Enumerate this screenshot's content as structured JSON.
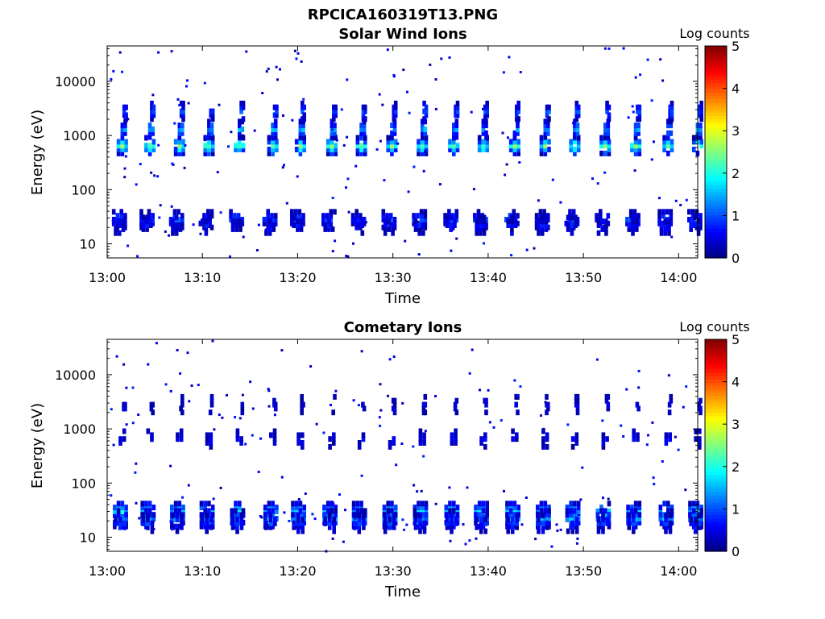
{
  "figure": {
    "title": "RPCICA160319T13.PNG"
  },
  "chart_data": [
    {
      "type": "heatmap",
      "title": "Solar Wind Ions",
      "xlabel": "Time",
      "ylabel": "Energy (eV)",
      "x_ticks": [
        "13:00",
        "13:10",
        "13:20",
        "13:30",
        "13:40",
        "13:50",
        "14:00"
      ],
      "y_ticks": [
        "10",
        "100",
        "1000",
        "10000"
      ],
      "x_range_min": [
        0,
        62
      ],
      "y_range_eV": [
        5.5,
        45000
      ],
      "y_scale": "log",
      "colorbar": {
        "label": "Log counts",
        "ticks": [
          "0",
          "1",
          "2",
          "3",
          "4",
          "5"
        ],
        "range": [
          0,
          5
        ],
        "colormap": "jet"
      },
      "sweep_start_min": [
        0.1,
        3.0,
        6.1,
        9.2,
        12.4,
        15.9,
        18.8,
        22.1,
        25.2,
        28.4,
        31.6,
        34.9,
        38.0,
        41.3,
        44.5,
        47.6,
        50.8,
        54.0,
        57.4,
        60.5
      ],
      "blobs": [
        {
          "energy_eV": 650,
          "t_offset_min": 1.5,
          "width_min": 1.2,
          "peak_log": 2.4
        },
        {
          "energy_eV": 1300,
          "t_offset_min": 1.6,
          "width_min": 0.6,
          "peak_log": 1.6
        },
        {
          "energy_eV": 2800,
          "t_offset_min": 1.7,
          "width_min": 0.4,
          "peak_log": 1.1
        },
        {
          "energy_eV": 28,
          "t_offset_min": 1.2,
          "width_min": 1.6,
          "peak_log": 1.0
        },
        {
          "energy_eV": 22,
          "t_offset_min": 1.2,
          "width_min": 1.2,
          "peak_log": 0.6
        }
      ],
      "grid": false
    },
    {
      "type": "heatmap",
      "title": "Cometary Ions",
      "xlabel": "Time",
      "ylabel": "Energy (eV)",
      "x_ticks": [
        "13:00",
        "13:10",
        "13:20",
        "13:30",
        "13:40",
        "13:50",
        "14:00"
      ],
      "y_ticks": [
        "10",
        "100",
        "1000",
        "10000"
      ],
      "x_range_min": [
        0,
        62
      ],
      "y_range_eV": [
        5.5,
        45000
      ],
      "y_scale": "log",
      "colorbar": {
        "label": "Log counts",
        "ticks": [
          "0",
          "1",
          "2",
          "3",
          "4",
          "5"
        ],
        "range": [
          0,
          5
        ],
        "colormap": "jet"
      },
      "sweep_start_min": [
        0.1,
        3.0,
        6.1,
        9.2,
        12.4,
        15.9,
        18.8,
        22.1,
        25.2,
        28.4,
        31.6,
        34.9,
        38.0,
        41.3,
        44.5,
        47.6,
        50.8,
        54.0,
        57.4,
        60.5
      ],
      "blobs": [
        {
          "energy_eV": 30,
          "t_offset_min": 1.3,
          "width_min": 1.6,
          "peak_log": 2.2
        },
        {
          "energy_eV": 22,
          "t_offset_min": 1.3,
          "width_min": 1.6,
          "peak_log": 1.6
        },
        {
          "energy_eV": 18,
          "t_offset_min": 1.3,
          "width_min": 1.4,
          "peak_log": 0.8
        },
        {
          "energy_eV": 650,
          "t_offset_min": 1.5,
          "width_min": 0.8,
          "peak_log": 0.5
        },
        {
          "energy_eV": 2800,
          "t_offset_min": 1.6,
          "width_min": 0.3,
          "peak_log": 0.3
        }
      ],
      "grid": false
    }
  ]
}
